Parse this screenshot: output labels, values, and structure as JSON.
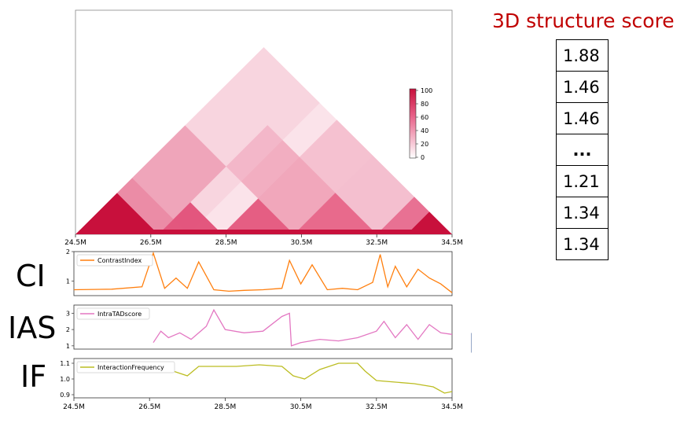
{
  "score_panel": {
    "title": "3D structure score",
    "scores": [
      "1.88",
      "1.46",
      "1.46",
      "...",
      "1.21",
      "1.34",
      "1.34"
    ]
  },
  "track_names": {
    "ci": "CI",
    "ias": "IAS",
    "if": "IF"
  },
  "heatmap": {
    "x_ticks": [
      "24.5M",
      "26.5M",
      "28.5M",
      "30.5M",
      "32.5M",
      "34.5M"
    ],
    "colorbar": {
      "ticks": [
        "100",
        "80",
        "60",
        "40",
        "20",
        "0"
      ],
      "color_high": "#c8103c",
      "color_low": "#ffffff"
    }
  },
  "tracks": {
    "ci": {
      "legend": "ContrastIndex",
      "color": "#ff7f0e",
      "y_ticks": [
        "2",
        "1"
      ]
    },
    "ias": {
      "legend": "IntraTADscore",
      "color": "#e377c2",
      "y_ticks": [
        "3",
        "2",
        "1"
      ]
    },
    "if": {
      "legend": "InteractionFrequency",
      "color": "#bcbd22",
      "y_ticks": [
        "1.1",
        "1.0",
        "0.9"
      ],
      "x_ticks": [
        "24.5M",
        "26.5M",
        "28.5M",
        "30.5M",
        "32.5M",
        "34.5M"
      ]
    }
  },
  "arrow": {
    "color": "#4472c4"
  },
  "chart_data": [
    {
      "type": "line",
      "series": [
        {
          "name": "ContrastIndex",
          "x": [
            24.5,
            25.5,
            26.3,
            26.6,
            26.9,
            27.2,
            27.5,
            27.8,
            28.2,
            28.6,
            29.0,
            29.5,
            30.0,
            30.2,
            30.5,
            30.8,
            31.2,
            31.6,
            32.0,
            32.4,
            32.6,
            32.8,
            33.0,
            33.3,
            33.6,
            33.9,
            34.2,
            34.5
          ],
          "y": [
            0.7,
            0.72,
            0.8,
            1.95,
            0.75,
            1.1,
            0.75,
            1.65,
            0.7,
            0.65,
            0.68,
            0.7,
            0.75,
            1.7,
            0.9,
            1.55,
            0.7,
            0.75,
            0.7,
            0.95,
            1.9,
            0.8,
            1.5,
            0.8,
            1.4,
            1.1,
            0.9,
            0.6
          ]
        }
      ],
      "ylim": [
        0.5,
        2.0
      ]
    },
    {
      "type": "line",
      "series": [
        {
          "name": "IntraTADscore",
          "x": [
            26.6,
            26.8,
            27.0,
            27.3,
            27.6,
            28.0,
            28.2,
            28.5,
            29.0,
            29.5,
            30.0,
            30.2,
            30.25,
            30.5,
            31.0,
            31.5,
            32.0,
            32.5,
            32.7,
            33.0,
            33.3,
            33.6,
            33.9,
            34.2,
            34.5
          ],
          "y": [
            1.2,
            1.9,
            1.5,
            1.8,
            1.4,
            2.2,
            3.2,
            2.0,
            1.8,
            1.9,
            2.8,
            3.0,
            1.0,
            1.2,
            1.4,
            1.3,
            1.5,
            1.9,
            2.5,
            1.5,
            2.3,
            1.4,
            2.3,
            1.8,
            1.7
          ]
        }
      ],
      "ylim": [
        0.8,
        3.5
      ]
    },
    {
      "type": "line",
      "series": [
        {
          "name": "InteractionFrequency",
          "x": [
            26.6,
            27.0,
            27.5,
            27.8,
            28.2,
            28.8,
            29.4,
            30.0,
            30.3,
            30.6,
            31.0,
            31.5,
            32.0,
            32.2,
            32.5,
            33.0,
            33.5,
            34.0,
            34.3,
            34.5
          ],
          "y": [
            1.1,
            1.06,
            1.02,
            1.08,
            1.08,
            1.08,
            1.09,
            1.08,
            1.02,
            1.0,
            1.06,
            1.1,
            1.1,
            1.05,
            0.99,
            0.98,
            0.97,
            0.95,
            0.91,
            0.92
          ]
        }
      ],
      "ylim": [
        0.88,
        1.13
      ]
    }
  ]
}
